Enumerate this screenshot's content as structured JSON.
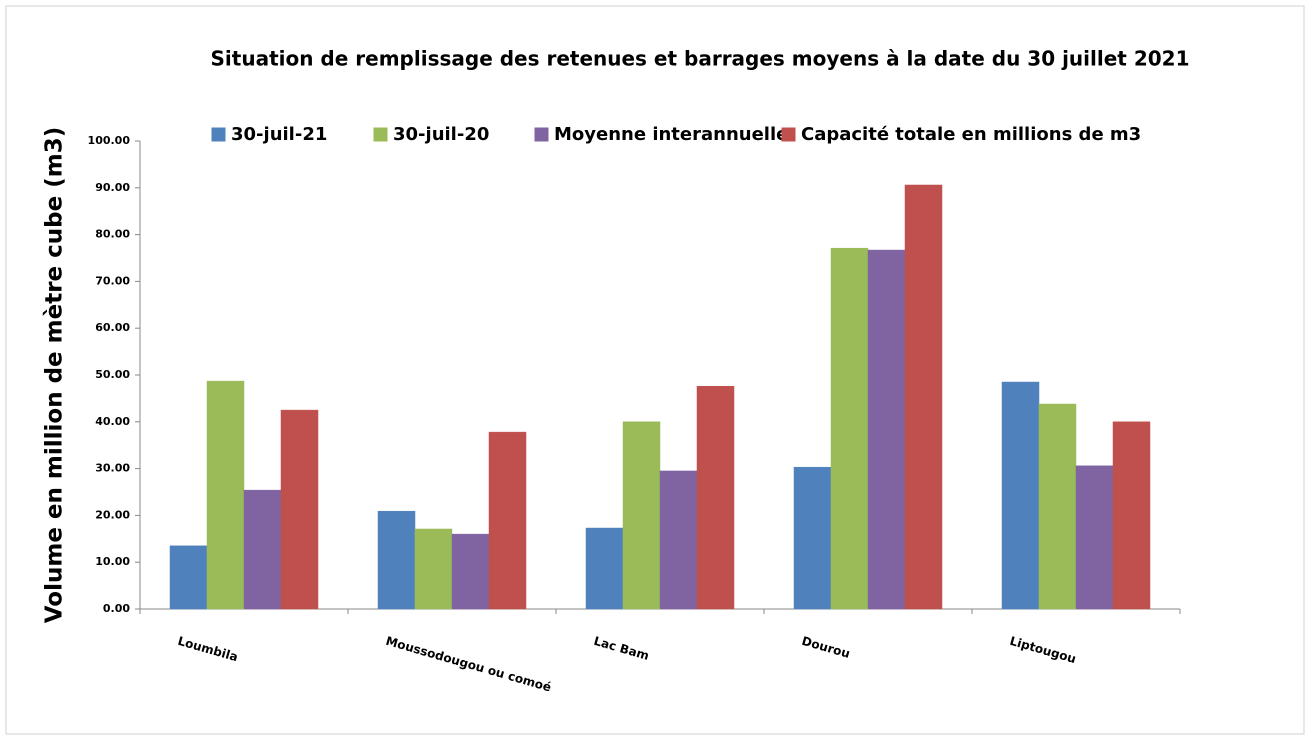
{
  "chart_data": {
    "type": "bar",
    "title": "Situation de remplissage des retenues et barrages moyens à la date du 30 juillet 2021",
    "y_label": "Volume en million de mètre cube (m3)",
    "categories": [
      "Loumbila",
      "Moussodougou ou comoé",
      "Lac Bam",
      "Dourou",
      "Liptougou"
    ],
    "series": [
      {
        "name": "30-juil-21",
        "color": "#4f81bd",
        "values": [
          13.5,
          20.9,
          17.3,
          30.3,
          48.5
        ]
      },
      {
        "name": "30-juil-20",
        "color": "#9bbb59",
        "values": [
          48.7,
          17.1,
          40.0,
          77.1,
          43.8
        ]
      },
      {
        "name": "Moyenne interannuelle",
        "color": "#8064a2",
        "values": [
          25.4,
          16.0,
          29.5,
          76.7,
          30.6
        ]
      },
      {
        "name": "Capacité totale en millions de m3",
        "color": "#c0504d",
        "values": [
          42.5,
          37.8,
          47.6,
          90.6,
          40.0
        ]
      }
    ],
    "ylim": [
      0,
      100
    ],
    "yticks": [
      {
        "value": 0,
        "label": "0.00"
      },
      {
        "value": 10,
        "label": "10.00"
      },
      {
        "value": 20,
        "label": "20.00"
      },
      {
        "value": 30,
        "label": "30.00"
      },
      {
        "value": 40,
        "label": "40.00"
      },
      {
        "value": 50,
        "label": "50.00"
      },
      {
        "value": 60,
        "label": "60.00"
      },
      {
        "value": 70,
        "label": "70.00"
      },
      {
        "value": 80,
        "label": "80.00"
      },
      {
        "value": 90,
        "label": "90.00"
      },
      {
        "value": 100,
        "label": "100.00"
      }
    ],
    "legend": "top"
  }
}
